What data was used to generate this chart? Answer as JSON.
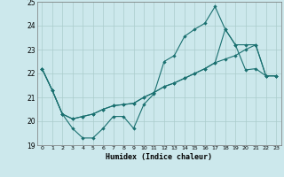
{
  "xlabel": "Humidex (Indice chaleur)",
  "xlim": [
    -0.5,
    23.5
  ],
  "ylim": [
    19,
    25
  ],
  "xticks": [
    0,
    1,
    2,
    3,
    4,
    5,
    6,
    7,
    8,
    9,
    10,
    11,
    12,
    13,
    14,
    15,
    16,
    17,
    18,
    19,
    20,
    21,
    22,
    23
  ],
  "yticks": [
    19,
    20,
    21,
    22,
    23,
    24,
    25
  ],
  "bg_color": "#cce8ec",
  "grid_color": "#aacccc",
  "line_color": "#1a7070",
  "line1_x": [
    0,
    1,
    2,
    3,
    4,
    5,
    6,
    7,
    8,
    9,
    10,
    11,
    12,
    13,
    14,
    15,
    16,
    17,
    18,
    19,
    20,
    21,
    22,
    23
  ],
  "line1_y": [
    22.2,
    21.3,
    20.3,
    19.7,
    19.3,
    19.3,
    19.7,
    20.2,
    20.2,
    19.7,
    20.7,
    21.15,
    22.5,
    22.75,
    23.55,
    23.85,
    24.1,
    24.8,
    23.85,
    23.2,
    22.15,
    22.2,
    21.9,
    21.9
  ],
  "line2_x": [
    0,
    1,
    2,
    3,
    4,
    5,
    6,
    7,
    8,
    9,
    10,
    11,
    12,
    13,
    14,
    15,
    16,
    17,
    18,
    19,
    20,
    21,
    22,
    23
  ],
  "line2_y": [
    22.2,
    21.3,
    20.3,
    20.1,
    20.2,
    20.3,
    20.5,
    20.65,
    20.7,
    20.75,
    21.0,
    21.2,
    21.45,
    21.6,
    21.8,
    22.0,
    22.2,
    22.45,
    23.85,
    23.2,
    23.2,
    23.2,
    21.9,
    21.9
  ],
  "line3_x": [
    0,
    1,
    2,
    3,
    4,
    5,
    6,
    7,
    8,
    9,
    10,
    11,
    12,
    13,
    14,
    15,
    16,
    17,
    18,
    19,
    20,
    21,
    22,
    23
  ],
  "line3_y": [
    22.2,
    21.3,
    20.3,
    20.1,
    20.2,
    20.3,
    20.5,
    20.65,
    20.7,
    20.75,
    21.0,
    21.2,
    21.45,
    21.6,
    21.8,
    22.0,
    22.2,
    22.45,
    22.6,
    22.75,
    23.0,
    23.2,
    21.9,
    21.9
  ]
}
